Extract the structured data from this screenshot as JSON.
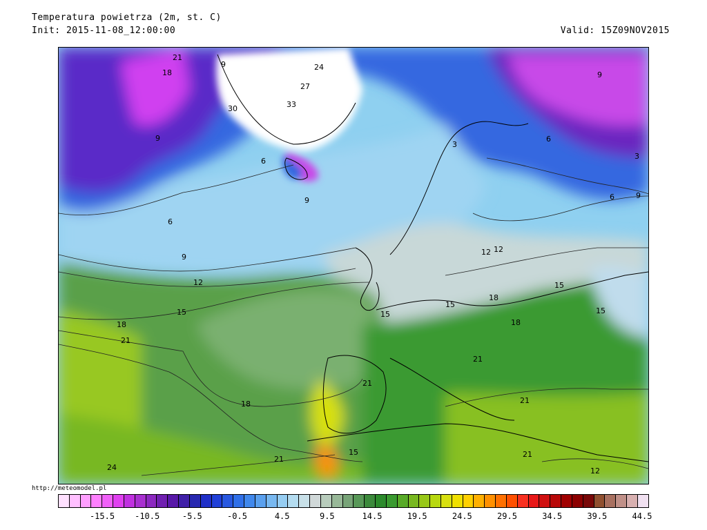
{
  "header": {
    "title": "Temperatura powietrza (2m, st. C)",
    "init": "Init: 2015-11-08_12:00:00",
    "valid": "Valid: 15Z09NOV2015"
  },
  "source_url": "http://meteomodel.pl",
  "map": {
    "contour_labels": [
      "21",
      "18",
      "9",
      "24",
      "27",
      "30",
      "33",
      "9",
      "9",
      "6",
      "9",
      "3",
      "6",
      "12",
      "12",
      "3",
      "6",
      "6",
      "9",
      "9",
      "12",
      "15",
      "18",
      "21",
      "15",
      "15",
      "18",
      "15",
      "15",
      "18",
      "21",
      "21",
      "18",
      "21",
      "21",
      "21",
      "15",
      "24",
      "12"
    ]
  },
  "colorbar": {
    "colors": [
      "#ffe0ff",
      "#ffbfff",
      "#ff9fff",
      "#ff80ff",
      "#f060f8",
      "#e040f0",
      "#c030e0",
      "#a830d0",
      "#8c28c0",
      "#7020b0",
      "#5818a8",
      "#4020a8",
      "#2828b0",
      "#2030c8",
      "#2040d8",
      "#2858e0",
      "#3070e8",
      "#4088ec",
      "#5aa0ee",
      "#78b8f0",
      "#96cdf2",
      "#b4dcf0",
      "#c8e0e8",
      "#d0d8d8",
      "#b8ccbc",
      "#98b898",
      "#78a478",
      "#589858",
      "#3c8a3c",
      "#2c8a2c",
      "#3a9a30",
      "#58aa28",
      "#78b820",
      "#98c818",
      "#b8d810",
      "#d8e010",
      "#f0e000",
      "#ffd000",
      "#ffb000",
      "#ff9000",
      "#ff7000",
      "#ff5000",
      "#f83020",
      "#e81818",
      "#d01010",
      "#b80808",
      "#a00000",
      "#8c0000",
      "#780808",
      "#905030",
      "#a87060",
      "#c09088",
      "#d8b0b0",
      "#f0e0f0"
    ],
    "tick_labels": [
      "-15.5",
      "-10.5",
      "-5.5",
      "-0.5",
      "4.5",
      "9.5",
      "14.5",
      "19.5",
      "24.5",
      "29.5",
      "34.5",
      "39.5",
      "44.5"
    ]
  }
}
